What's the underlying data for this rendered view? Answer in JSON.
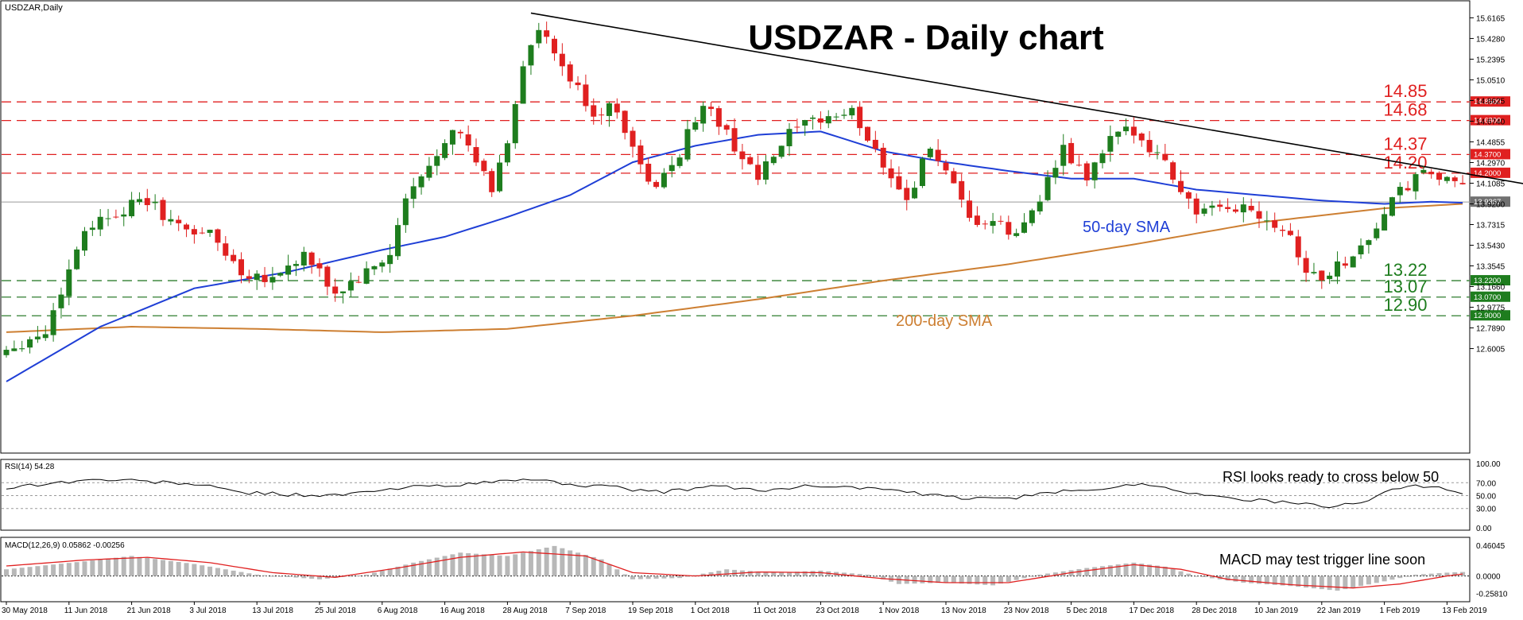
{
  "chart_data": {
    "type": "candlestick",
    "symbol_label": "USDZAR,Daily",
    "title": "USDZAR - Daily chart",
    "colors": {
      "bull": "#1e7d1e",
      "bear": "#e02020",
      "sma50": "#1f3fd6",
      "sma200": "#cd7f32",
      "trend": "#000000",
      "res_line": "#e02020",
      "sup_line": "#2e7d2e",
      "res_text": "#e02020",
      "sup_text": "#1e7d1e",
      "rsi": "#000000",
      "macd_hist": "#b8b8b8",
      "macd_signal": "#e02020"
    },
    "price_axis": {
      "ylim": [
        12.445,
        15.692
      ],
      "ticks": [
        "15.6165",
        "15.4280",
        "15.2395",
        "15.0510",
        "14.8625",
        "14.6740",
        "14.4855",
        "14.2970",
        "14.1085",
        "13.9200",
        "13.7315",
        "13.5430",
        "13.3545",
        "13.1660",
        "12.9775",
        "12.7890",
        "12.6005"
      ]
    },
    "current_price": "13.9367",
    "x_axis": {
      "labels": [
        "30 May 2018",
        "11 Jun 2018",
        "21 Jun 2018",
        "3 Jul 2018",
        "13 Jul 2018",
        "25 Jul 2018",
        "6 Aug 2018",
        "16 Aug 2018",
        "28 Aug 2018",
        "7 Sep 2018",
        "19 Sep 2018",
        "1 Oct 2018",
        "11 Oct 2018",
        "23 Oct 2018",
        "1 Nov 2018",
        "13 Nov 2018",
        "23 Nov 2018",
        "5 Dec 2018",
        "17 Dec 2018",
        "28 Dec 2018",
        "10 Jan 2019",
        "22 Jan 2019",
        "1 Feb 2019",
        "13 Feb 2019"
      ],
      "label_bars": [
        0,
        8,
        16,
        24,
        32,
        40,
        48,
        56,
        64,
        72,
        80,
        88,
        96,
        104,
        112,
        120,
        128,
        136,
        144,
        152,
        160,
        168,
        176,
        184
      ]
    },
    "levels": [
      {
        "value": 14.85,
        "label": "14.85",
        "tag": "14.8500",
        "kind": "resistance"
      },
      {
        "value": 14.68,
        "label": "14.68",
        "tag": "14.6800",
        "kind": "resistance"
      },
      {
        "value": 14.37,
        "label": "14.37",
        "tag": "14.3700",
        "kind": "resistance"
      },
      {
        "value": 14.2,
        "label": "14.20",
        "tag": "14.2000",
        "kind": "resistance"
      },
      {
        "value": 13.22,
        "label": "13.22",
        "tag": "13.2200",
        "kind": "support"
      },
      {
        "value": 13.07,
        "label": "13.07",
        "tag": "13.0700",
        "kind": "support"
      },
      {
        "value": 12.9,
        "label": "12.90",
        "tag": "12.9000",
        "kind": "support"
      }
    ],
    "trendline": [
      [
        67,
        15.66
      ],
      [
        199,
        14.04
      ]
    ],
    "annotations": {
      "sma50": "50-day SMA",
      "sma200": "200-day SMA",
      "rsi": "RSI looks ready to cross below 50",
      "macd": "MACD may test trigger line soon"
    },
    "ohlc_anchors": [
      [
        0,
        12.6
      ],
      [
        5,
        12.75
      ],
      [
        10,
        13.7
      ],
      [
        14,
        13.85
      ],
      [
        18,
        13.95
      ],
      [
        22,
        13.7
      ],
      [
        26,
        13.65
      ],
      [
        30,
        13.3
      ],
      [
        34,
        13.25
      ],
      [
        38,
        13.45
      ],
      [
        42,
        13.1
      ],
      [
        46,
        13.28
      ],
      [
        49,
        13.45
      ],
      [
        51,
        13.95
      ],
      [
        54,
        14.25
      ],
      [
        57,
        14.65
      ],
      [
        60,
        14.3
      ],
      [
        62,
        14.05
      ],
      [
        64,
        14.5
      ],
      [
        66,
        15.2
      ],
      [
        68,
        15.5
      ],
      [
        72,
        15.05
      ],
      [
        75,
        14.75
      ],
      [
        78,
        14.8
      ],
      [
        81,
        14.25
      ],
      [
        83,
        14.05
      ],
      [
        86,
        14.4
      ],
      [
        89,
        14.85
      ],
      [
        92,
        14.55
      ],
      [
        96,
        14.15
      ],
      [
        100,
        14.55
      ],
      [
        104,
        14.7
      ],
      [
        108,
        14.75
      ],
      [
        112,
        14.3
      ],
      [
        115,
        13.95
      ],
      [
        118,
        14.45
      ],
      [
        121,
        14.05
      ],
      [
        123,
        13.75
      ],
      [
        126,
        13.75
      ],
      [
        129,
        13.62
      ],
      [
        132,
        14.0
      ],
      [
        135,
        14.4
      ],
      [
        138,
        14.15
      ],
      [
        141,
        14.5
      ],
      [
        144,
        14.6
      ],
      [
        146,
        14.45
      ],
      [
        148,
        14.3
      ],
      [
        150,
        14.05
      ],
      [
        152,
        13.85
      ],
      [
        155,
        13.85
      ],
      [
        158,
        13.9
      ],
      [
        161,
        13.8
      ],
      [
        164,
        13.65
      ],
      [
        166,
        13.3
      ],
      [
        168,
        13.25
      ],
      [
        171,
        13.4
      ],
      [
        174,
        13.6
      ],
      [
        177,
        13.95
      ],
      [
        180,
        14.15
      ],
      [
        182,
        14.2
      ],
      [
        184,
        14.12
      ],
      [
        186,
        14.05
      ]
    ],
    "sma50": [
      [
        0,
        12.3
      ],
      [
        12,
        12.8
      ],
      [
        24,
        13.15
      ],
      [
        36,
        13.3
      ],
      [
        48,
        13.5
      ],
      [
        56,
        13.62
      ],
      [
        64,
        13.8
      ],
      [
        72,
        14.0
      ],
      [
        80,
        14.3
      ],
      [
        88,
        14.45
      ],
      [
        96,
        14.55
      ],
      [
        104,
        14.58
      ],
      [
        112,
        14.4
      ],
      [
        120,
        14.3
      ],
      [
        128,
        14.22
      ],
      [
        136,
        14.15
      ],
      [
        144,
        14.15
      ],
      [
        152,
        14.05
      ],
      [
        160,
        14.0
      ],
      [
        168,
        13.95
      ],
      [
        176,
        13.92
      ],
      [
        182,
        13.94
      ],
      [
        186,
        13.93
      ]
    ],
    "sma200": [
      [
        0,
        12.75
      ],
      [
        16,
        12.8
      ],
      [
        32,
        12.78
      ],
      [
        48,
        12.75
      ],
      [
        64,
        12.78
      ],
      [
        80,
        12.9
      ],
      [
        96,
        13.05
      ],
      [
        112,
        13.22
      ],
      [
        128,
        13.37
      ],
      [
        144,
        13.55
      ],
      [
        160,
        13.75
      ],
      [
        176,
        13.88
      ],
      [
        186,
        13.92
      ]
    ],
    "rsi": {
      "label": "RSI(14) 54.28",
      "ylim": [
        0,
        100
      ],
      "ticks": [
        "100.00",
        "70.00",
        "50.00",
        "30.00",
        "0.00"
      ],
      "anchors": [
        [
          0,
          62
        ],
        [
          6,
          70
        ],
        [
          12,
          75
        ],
        [
          18,
          72
        ],
        [
          24,
          68
        ],
        [
          30,
          55
        ],
        [
          36,
          52
        ],
        [
          42,
          50
        ],
        [
          48,
          58
        ],
        [
          54,
          66
        ],
        [
          60,
          68
        ],
        [
          66,
          76
        ],
        [
          72,
          68
        ],
        [
          78,
          62
        ],
        [
          84,
          55
        ],
        [
          90,
          65
        ],
        [
          96,
          58
        ],
        [
          104,
          66
        ],
        [
          112,
          60
        ],
        [
          118,
          50
        ],
        [
          124,
          45
        ],
        [
          130,
          48
        ],
        [
          136,
          58
        ],
        [
          142,
          64
        ],
        [
          146,
          68
        ],
        [
          150,
          58
        ],
        [
          154,
          48
        ],
        [
          158,
          45
        ],
        [
          162,
          40
        ],
        [
          166,
          36
        ],
        [
          170,
          32
        ],
        [
          174,
          45
        ],
        [
          178,
          62
        ],
        [
          182,
          66
        ],
        [
          186,
          54
        ]
      ]
    },
    "macd": {
      "label": "MACD(12,26,9) 0.05862 -0.00256",
      "ylim": [
        -0.35,
        0.52
      ],
      "ticks": [
        "0.46045",
        "0.0000",
        "-0.25810"
      ],
      "hist_anchors": [
        [
          0,
          0.1
        ],
        [
          10,
          0.22
        ],
        [
          16,
          0.3
        ],
        [
          24,
          0.18
        ],
        [
          32,
          0.02
        ],
        [
          40,
          -0.05
        ],
        [
          46,
          0.02
        ],
        [
          52,
          0.2
        ],
        [
          58,
          0.35
        ],
        [
          64,
          0.3
        ],
        [
          70,
          0.45
        ],
        [
          76,
          0.25
        ],
        [
          80,
          -0.05
        ],
        [
          86,
          -0.03
        ],
        [
          92,
          0.1
        ],
        [
          98,
          0.05
        ],
        [
          104,
          0.08
        ],
        [
          110,
          0.02
        ],
        [
          114,
          -0.12
        ],
        [
          120,
          -0.1
        ],
        [
          126,
          -0.14
        ],
        [
          132,
          0.02
        ],
        [
          138,
          0.12
        ],
        [
          144,
          0.2
        ],
        [
          148,
          0.14
        ],
        [
          152,
          0.0
        ],
        [
          158,
          -0.1
        ],
        [
          164,
          -0.15
        ],
        [
          170,
          -0.22
        ],
        [
          176,
          -0.08
        ],
        [
          180,
          0.02
        ],
        [
          184,
          0.05
        ],
        [
          186,
          0.06
        ]
      ],
      "signal_anchors": [
        [
          0,
          0.15
        ],
        [
          10,
          0.24
        ],
        [
          18,
          0.28
        ],
        [
          26,
          0.2
        ],
        [
          34,
          0.05
        ],
        [
          42,
          -0.02
        ],
        [
          50,
          0.12
        ],
        [
          58,
          0.28
        ],
        [
          66,
          0.36
        ],
        [
          74,
          0.3
        ],
        [
          80,
          0.05
        ],
        [
          88,
          0.0
        ],
        [
          96,
          0.06
        ],
        [
          104,
          0.05
        ],
        [
          112,
          -0.04
        ],
        [
          120,
          -0.1
        ],
        [
          128,
          -0.1
        ],
        [
          136,
          0.05
        ],
        [
          144,
          0.17
        ],
        [
          150,
          0.1
        ],
        [
          156,
          -0.05
        ],
        [
          164,
          -0.13
        ],
        [
          172,
          -0.18
        ],
        [
          178,
          -0.12
        ],
        [
          184,
          0.0
        ],
        [
          186,
          0.03
        ]
      ]
    }
  }
}
